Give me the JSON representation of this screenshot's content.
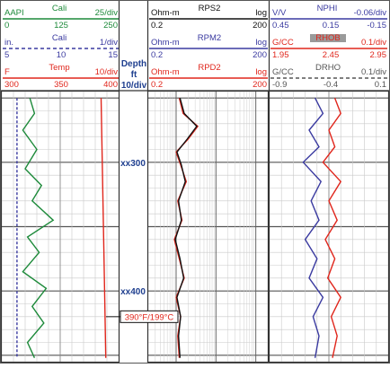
{
  "chart_data": {
    "type": "line",
    "title": "",
    "depth_track": {
      "title": "Depth",
      "unit": "ft",
      "scale": "10/div",
      "markers": [
        {
          "label": "xx300",
          "depth": 300
        },
        {
          "label": "xx400",
          "depth": 400
        }
      ],
      "depth_range": [
        245,
        455
      ],
      "annotation": {
        "text": "390°F/199°C",
        "depth": 420
      }
    },
    "tracks": [
      {
        "id": "track1",
        "headers": [
          {
            "mnemonic": "Cali",
            "unit": "AAPI",
            "scale": "25/div",
            "min": "0",
            "mid": "125",
            "max": "250",
            "color": "#1d8a3a",
            "style": "solid"
          },
          {
            "mnemonic": "Cali",
            "unit": "in.",
            "scale": "1/div",
            "min": "5",
            "mid": "10",
            "max": "15",
            "color": "#3a3aa0",
            "style": "dashed"
          },
          {
            "mnemonic": "Temp",
            "unit": "F",
            "scale": "10/div",
            "min": "300",
            "mid": "350",
            "max": "400",
            "color": "#e0261c",
            "style": "solid"
          }
        ],
        "series": [
          {
            "name": "Cali",
            "color": "#1d8a3a",
            "depth": [
              250,
              262,
              275,
              290,
              305,
              318,
              330,
              345,
              358,
              370,
              385,
              398,
              412,
              425,
              440,
              452
            ],
            "values": [
              60,
              70,
              45,
              75,
              50,
              85,
              65,
              110,
              55,
              80,
              45,
              95,
              65,
              90,
              55,
              70
            ]
          },
          {
            "name": "Cali",
            "color": "#3a3aa0",
            "depth": [
              250,
              300,
              350,
              400,
              452
            ],
            "values": [
              6.3,
              6.3,
              6.3,
              6.3,
              6.3
            ]
          },
          {
            "name": "Temp",
            "color": "#e0261c",
            "depth": [
              250,
              300,
              350,
              400,
              452
            ],
            "values": [
              385,
              386,
              387,
              388,
              389
            ]
          }
        ]
      },
      {
        "id": "track2",
        "scale_type": "log",
        "headers": [
          {
            "mnemonic": "RPS2",
            "unit": "Ohm-m",
            "scale": "log",
            "min": "0.2",
            "max": "200",
            "color": "#111111",
            "style": "solid"
          },
          {
            "mnemonic": "RPM2",
            "unit": "Ohm-m",
            "scale": "log",
            "min": "0.2",
            "max": "200",
            "color": "#3a3aa0",
            "style": "solid"
          },
          {
            "mnemonic": "RPD2",
            "unit": "Ohm-m",
            "scale": "log",
            "min": "0.2",
            "max": "200",
            "color": "#e0261c",
            "style": "solid"
          }
        ],
        "series": [
          {
            "name": "RPD2",
            "color": "#e0261c",
            "depth": [
              250,
              262,
              272,
              282,
              292,
              302,
              315,
              330,
              345,
              360,
              375,
              390,
              405,
              420,
              435,
              452
            ],
            "values": [
              1.2,
              1.5,
              3.5,
              2.0,
              1.0,
              1.3,
              1.8,
              1.1,
              1.4,
              0.9,
              1.2,
              1.6,
              1.0,
              1.3,
              1.1,
              1.2
            ]
          },
          {
            "name": "RPS2",
            "color": "#111111",
            "depth": [
              250,
              262,
              272,
              282,
              292,
              302,
              315,
              330,
              345,
              360,
              375,
              390,
              405,
              420,
              435,
              452
            ],
            "values": [
              1.25,
              1.6,
              3.3,
              1.9,
              1.05,
              1.35,
              1.7,
              1.15,
              1.35,
              0.95,
              1.25,
              1.55,
              1.05,
              1.3,
              1.15,
              1.25
            ]
          }
        ]
      },
      {
        "id": "track3",
        "headers": [
          {
            "mnemonic": "NPHI",
            "unit": "V/V",
            "scale": "-0.06/div",
            "min": "0.45",
            "mid": "0.15",
            "max": "-0.15",
            "color": "#3a3aa0",
            "style": "solid"
          },
          {
            "mnemonic": "RHOB",
            "unit": "G/CC",
            "scale": "0.1/div",
            "min": "1.95",
            "mid": "2.45",
            "max": "2.95",
            "color": "#e0261c",
            "style": "solid"
          },
          {
            "mnemonic": "DRHO",
            "unit": "G/CC",
            "scale": "0.1/div",
            "min": "-0.9",
            "mid": "-0.4",
            "max": "0.1",
            "color": "#555555",
            "style": "dashed"
          }
        ],
        "series": [
          {
            "name": "NPHI",
            "color": "#3a3aa0",
            "depth": [
              250,
              262,
              275,
              288,
              300,
              315,
              330,
              345,
              360,
              375,
              390,
              405,
              420,
              435,
              452
            ],
            "values": [
              0.22,
              0.18,
              0.25,
              0.2,
              0.28,
              0.19,
              0.24,
              0.2,
              0.27,
              0.21,
              0.25,
              0.18,
              0.23,
              0.2,
              0.22
            ]
          },
          {
            "name": "RHOB",
            "color": "#e0261c",
            "depth": [
              250,
              262,
              275,
              288,
              300,
              315,
              330,
              345,
              360,
              375,
              390,
              405,
              420,
              435,
              452
            ],
            "values": [
              2.5,
              2.55,
              2.45,
              2.5,
              2.4,
              2.55,
              2.45,
              2.52,
              2.42,
              2.5,
              2.44,
              2.55,
              2.47,
              2.52,
              2.48
            ]
          }
        ]
      }
    ]
  }
}
